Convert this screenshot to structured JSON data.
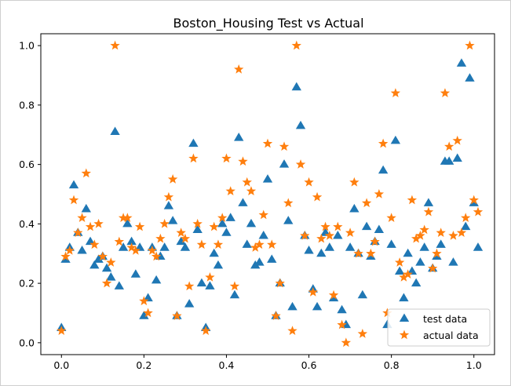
{
  "chart_data": {
    "type": "scatter",
    "title": "Boston_Housing Test vs Actual",
    "xlabel": "",
    "ylabel": "",
    "xlim": [
      -0.05,
      1.05
    ],
    "ylim": [
      -0.04,
      1.04
    ],
    "xticks": [
      "0.0",
      "0.2",
      "0.4",
      "0.6",
      "0.8",
      "1.0"
    ],
    "yticks": [
      "0.0",
      "0.2",
      "0.4",
      "0.6",
      "0.8",
      "1.0"
    ],
    "grid": false,
    "legend_position": "lower-right",
    "series": [
      {
        "name": "test data",
        "marker": "triangle",
        "color": "#1f77b4",
        "points": [
          [
            0.0,
            0.05
          ],
          [
            0.01,
            0.28
          ],
          [
            0.02,
            0.32
          ],
          [
            0.03,
            0.53
          ],
          [
            0.04,
            0.37
          ],
          [
            0.05,
            0.31
          ],
          [
            0.06,
            0.45
          ],
          [
            0.07,
            0.34
          ],
          [
            0.08,
            0.26
          ],
          [
            0.09,
            0.28
          ],
          [
            0.1,
            0.29
          ],
          [
            0.11,
            0.25
          ],
          [
            0.12,
            0.22
          ],
          [
            0.13,
            0.71
          ],
          [
            0.14,
            0.19
          ],
          [
            0.15,
            0.32
          ],
          [
            0.16,
            0.4
          ],
          [
            0.17,
            0.34
          ],
          [
            0.18,
            0.23
          ],
          [
            0.19,
            0.32
          ],
          [
            0.2,
            0.09
          ],
          [
            0.21,
            0.15
          ],
          [
            0.22,
            0.32
          ],
          [
            0.23,
            0.21
          ],
          [
            0.24,
            0.29
          ],
          [
            0.25,
            0.32
          ],
          [
            0.26,
            0.46
          ],
          [
            0.27,
            0.41
          ],
          [
            0.28,
            0.09
          ],
          [
            0.29,
            0.34
          ],
          [
            0.3,
            0.32
          ],
          [
            0.31,
            0.13
          ],
          [
            0.32,
            0.67
          ],
          [
            0.33,
            0.38
          ],
          [
            0.34,
            0.2
          ],
          [
            0.35,
            0.05
          ],
          [
            0.36,
            0.19
          ],
          [
            0.37,
            0.3
          ],
          [
            0.38,
            0.26
          ],
          [
            0.39,
            0.4
          ],
          [
            0.4,
            0.37
          ],
          [
            0.41,
            0.42
          ],
          [
            0.42,
            0.16
          ],
          [
            0.43,
            0.69
          ],
          [
            0.44,
            0.47
          ],
          [
            0.45,
            0.33
          ],
          [
            0.46,
            0.4
          ],
          [
            0.47,
            0.26
          ],
          [
            0.48,
            0.27
          ],
          [
            0.49,
            0.36
          ],
          [
            0.5,
            0.55
          ],
          [
            0.51,
            0.28
          ],
          [
            0.52,
            0.09
          ],
          [
            0.53,
            0.2
          ],
          [
            0.54,
            0.6
          ],
          [
            0.55,
            0.41
          ],
          [
            0.56,
            0.12
          ],
          [
            0.57,
            0.86
          ],
          [
            0.58,
            0.73
          ],
          [
            0.59,
            0.36
          ],
          [
            0.6,
            0.31
          ],
          [
            0.61,
            0.18
          ],
          [
            0.62,
            0.12
          ],
          [
            0.63,
            0.3
          ],
          [
            0.64,
            0.37
          ],
          [
            0.65,
            0.32
          ],
          [
            0.66,
            0.15
          ],
          [
            0.67,
            0.36
          ],
          [
            0.68,
            0.11
          ],
          [
            0.69,
            0.06
          ],
          [
            0.7,
            0.32
          ],
          [
            0.71,
            0.45
          ],
          [
            0.72,
            0.3
          ],
          [
            0.73,
            0.16
          ],
          [
            0.74,
            0.39
          ],
          [
            0.75,
            0.29
          ],
          [
            0.76,
            0.34
          ],
          [
            0.77,
            0.38
          ],
          [
            0.78,
            0.58
          ],
          [
            0.79,
            0.06
          ],
          [
            0.8,
            0.33
          ],
          [
            0.81,
            0.68
          ],
          [
            0.82,
            0.24
          ],
          [
            0.83,
            0.15
          ],
          [
            0.84,
            0.3
          ],
          [
            0.85,
            0.24
          ],
          [
            0.86,
            0.2
          ],
          [
            0.87,
            0.27
          ],
          [
            0.88,
            0.32
          ],
          [
            0.89,
            0.47
          ],
          [
            0.9,
            0.25
          ],
          [
            0.91,
            0.29
          ],
          [
            0.92,
            0.33
          ],
          [
            0.93,
            0.61
          ],
          [
            0.94,
            0.61
          ],
          [
            0.95,
            0.27
          ],
          [
            0.96,
            0.62
          ],
          [
            0.97,
            0.94
          ],
          [
            0.98,
            0.39
          ],
          [
            0.99,
            0.89
          ],
          [
            1.0,
            0.47
          ],
          [
            1.01,
            0.32
          ]
        ]
      },
      {
        "name": "actual data",
        "marker": "star",
        "color": "#ff7f0e",
        "points": [
          [
            0.0,
            0.04
          ],
          [
            0.01,
            0.29
          ],
          [
            0.02,
            0.31
          ],
          [
            0.03,
            0.48
          ],
          [
            0.04,
            0.37
          ],
          [
            0.05,
            0.42
          ],
          [
            0.06,
            0.57
          ],
          [
            0.07,
            0.39
          ],
          [
            0.08,
            0.33
          ],
          [
            0.09,
            0.4
          ],
          [
            0.1,
            0.29
          ],
          [
            0.11,
            0.2
          ],
          [
            0.12,
            0.27
          ],
          [
            0.13,
            1.0
          ],
          [
            0.14,
            0.34
          ],
          [
            0.15,
            0.42
          ],
          [
            0.16,
            0.42
          ],
          [
            0.17,
            0.32
          ],
          [
            0.18,
            0.31
          ],
          [
            0.19,
            0.39
          ],
          [
            0.2,
            0.14
          ],
          [
            0.21,
            0.1
          ],
          [
            0.22,
            0.31
          ],
          [
            0.23,
            0.29
          ],
          [
            0.24,
            0.35
          ],
          [
            0.25,
            0.4
          ],
          [
            0.26,
            0.49
          ],
          [
            0.27,
            0.55
          ],
          [
            0.28,
            0.09
          ],
          [
            0.29,
            0.37
          ],
          [
            0.3,
            0.35
          ],
          [
            0.31,
            0.19
          ],
          [
            0.32,
            0.62
          ],
          [
            0.33,
            0.4
          ],
          [
            0.34,
            0.33
          ],
          [
            0.35,
            0.04
          ],
          [
            0.36,
            0.22
          ],
          [
            0.37,
            0.39
          ],
          [
            0.38,
            0.33
          ],
          [
            0.39,
            0.42
          ],
          [
            0.4,
            0.62
          ],
          [
            0.41,
            0.51
          ],
          [
            0.42,
            0.19
          ],
          [
            0.43,
            0.92
          ],
          [
            0.44,
            0.61
          ],
          [
            0.45,
            0.54
          ],
          [
            0.46,
            0.51
          ],
          [
            0.47,
            0.32
          ],
          [
            0.48,
            0.33
          ],
          [
            0.49,
            0.43
          ],
          [
            0.5,
            0.67
          ],
          [
            0.51,
            0.33
          ],
          [
            0.52,
            0.09
          ],
          [
            0.53,
            0.2
          ],
          [
            0.54,
            0.66
          ],
          [
            0.55,
            0.47
          ],
          [
            0.56,
            0.04
          ],
          [
            0.57,
            1.0
          ],
          [
            0.58,
            0.6
          ],
          [
            0.59,
            0.36
          ],
          [
            0.6,
            0.54
          ],
          [
            0.61,
            0.17
          ],
          [
            0.62,
            0.49
          ],
          [
            0.63,
            0.35
          ],
          [
            0.64,
            0.39
          ],
          [
            0.65,
            0.36
          ],
          [
            0.66,
            0.16
          ],
          [
            0.67,
            0.39
          ],
          [
            0.68,
            0.06
          ],
          [
            0.69,
            0.0
          ],
          [
            0.7,
            0.37
          ],
          [
            0.71,
            0.54
          ],
          [
            0.72,
            0.3
          ],
          [
            0.73,
            0.03
          ],
          [
            0.74,
            0.47
          ],
          [
            0.75,
            0.3
          ],
          [
            0.76,
            0.34
          ],
          [
            0.77,
            0.5
          ],
          [
            0.78,
            0.67
          ],
          [
            0.79,
            0.1
          ],
          [
            0.8,
            0.42
          ],
          [
            0.81,
            0.84
          ],
          [
            0.82,
            0.27
          ],
          [
            0.83,
            0.22
          ],
          [
            0.84,
            0.23
          ],
          [
            0.85,
            0.48
          ],
          [
            0.86,
            0.35
          ],
          [
            0.87,
            0.36
          ],
          [
            0.88,
            0.38
          ],
          [
            0.89,
            0.44
          ],
          [
            0.9,
            0.25
          ],
          [
            0.91,
            0.3
          ],
          [
            0.92,
            0.37
          ],
          [
            0.93,
            0.84
          ],
          [
            0.94,
            0.66
          ],
          [
            0.95,
            0.36
          ],
          [
            0.96,
            0.68
          ],
          [
            0.97,
            0.37
          ],
          [
            0.98,
            0.42
          ],
          [
            0.99,
            1.0
          ],
          [
            1.0,
            0.48
          ],
          [
            1.01,
            0.44
          ]
        ]
      }
    ]
  }
}
